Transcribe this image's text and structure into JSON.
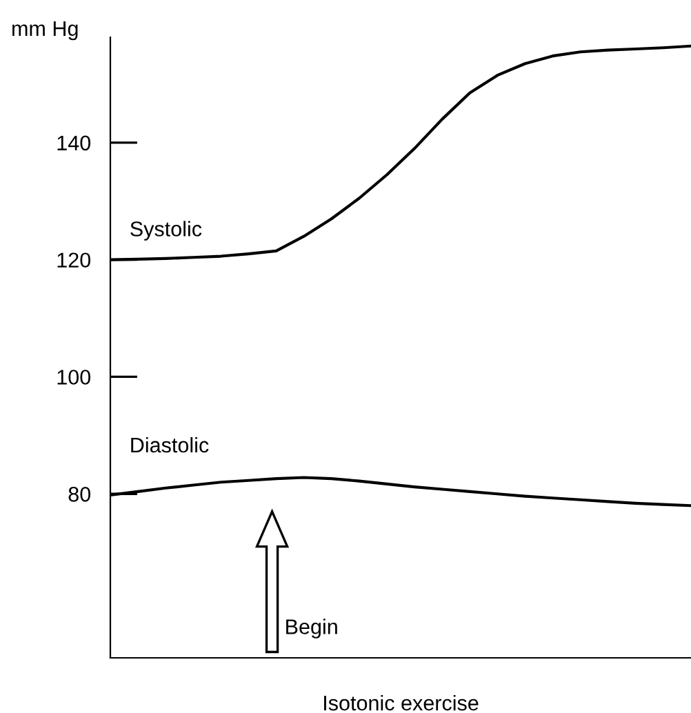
{
  "chart_data": {
    "type": "line",
    "ylabel": "mm Hg",
    "xlabel": "Isotonic exercise",
    "categories": [
      null,
      null,
      null,
      null,
      null,
      null,
      null,
      null,
      null,
      null,
      null,
      null,
      null,
      null,
      null,
      null,
      null,
      null,
      null,
      null,
      null,
      null
    ],
    "series": [
      {
        "name": "Systolic",
        "color": "#000000",
        "values": [
          120,
          120.1,
          120.2,
          120.4,
          120.6,
          121,
          121.5,
          124,
          127,
          130.5,
          134.5,
          139,
          144,
          148.5,
          151.5,
          153.5,
          154.8,
          155.5,
          155.8,
          156,
          156.2,
          156.5
        ]
      },
      {
        "name": "Diastolic",
        "color": "#000000",
        "values": [
          79.8,
          80.4,
          81,
          81.5,
          82,
          82.3,
          82.6,
          82.8,
          82.6,
          82.2,
          81.7,
          81.2,
          80.8,
          80.4,
          80,
          79.6,
          79.3,
          79,
          78.7,
          78.4,
          78.2,
          78
        ]
      }
    ],
    "ylim": [
      52,
      158
    ],
    "yticks": [
      80,
      100,
      120,
      140
    ],
    "grid": false,
    "legend": false,
    "marker": "none",
    "line_style": "solid",
    "annotations": [
      "Begin"
    ]
  }
}
